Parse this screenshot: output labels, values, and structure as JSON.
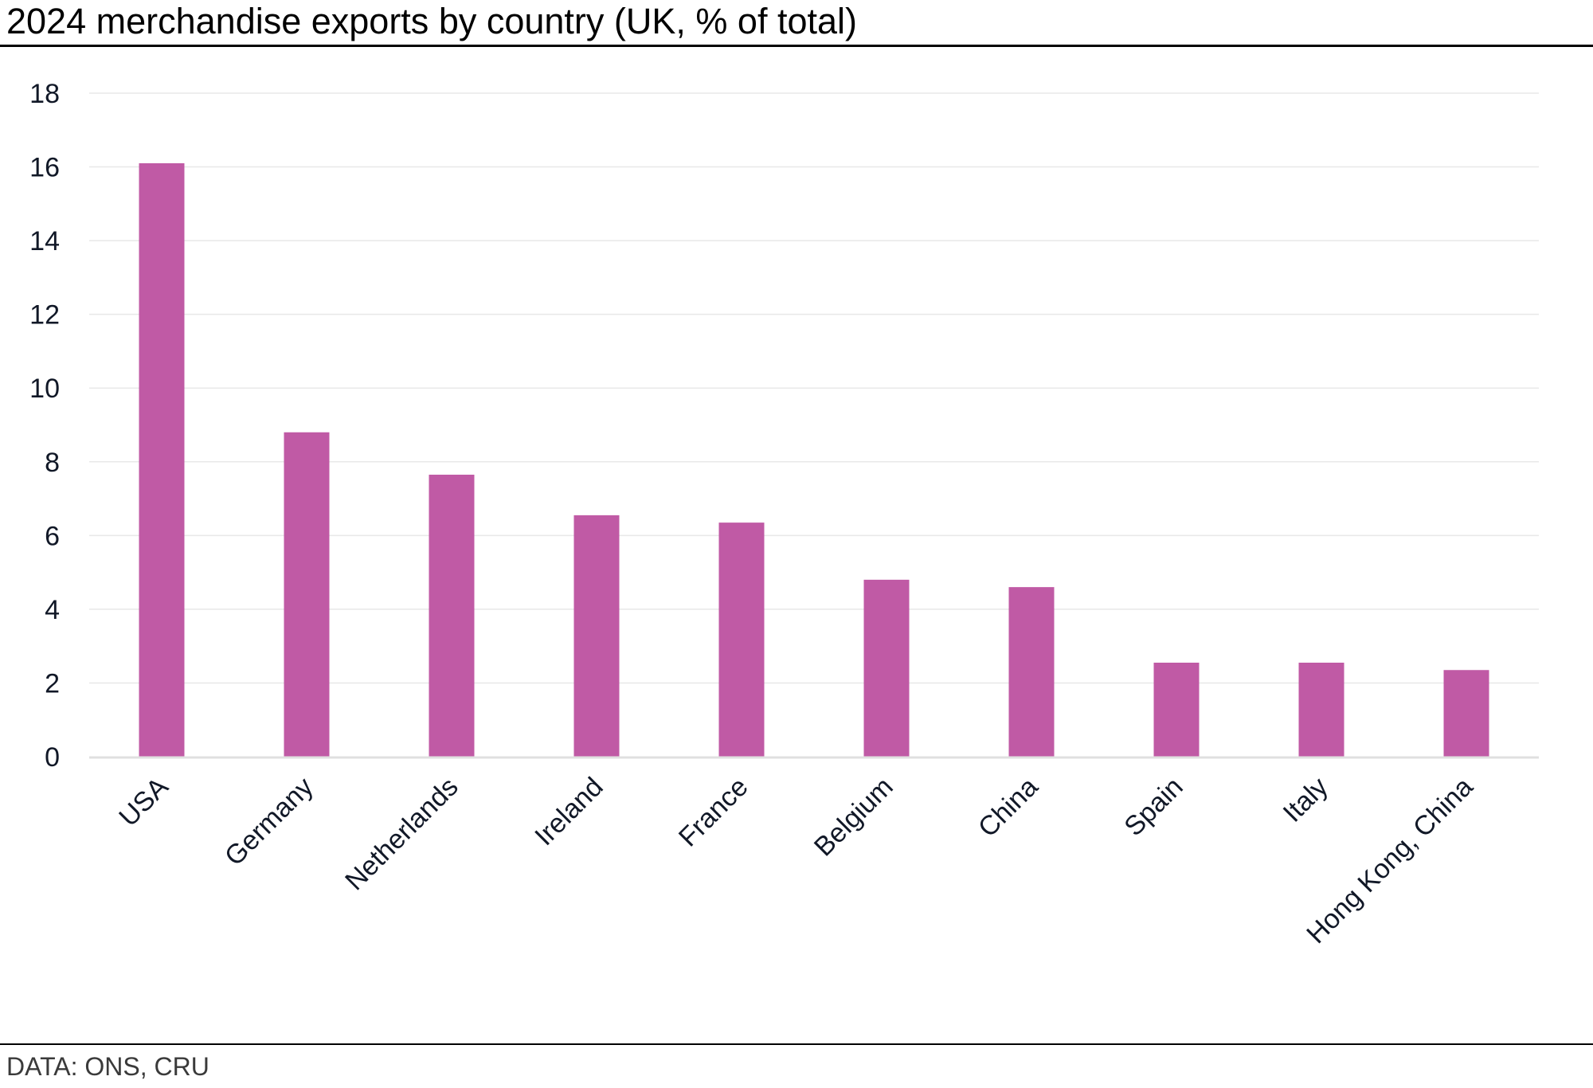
{
  "title": "2024 merchandise exports by country (UK, % of total)",
  "source": "DATA: ONS, CRU",
  "colors": {
    "bar": "#c05aa5",
    "grid": "#e8e8e8",
    "axis": "#e0e0e0",
    "rule": "#000000"
  },
  "chart_data": {
    "type": "bar",
    "title": "2024 merchandise exports by country (UK, % of total)",
    "xlabel": "",
    "ylabel": "",
    "categories": [
      "USA",
      "Germany",
      "Netherlands",
      "Ireland",
      "France",
      "Belgium",
      "China",
      "Spain",
      "Italy",
      "Hong Kong, China"
    ],
    "values": [
      16.1,
      8.8,
      7.65,
      6.55,
      6.35,
      4.8,
      4.6,
      2.55,
      2.55,
      2.35
    ],
    "ylim": [
      0,
      18
    ],
    "yticks": [
      0,
      2,
      4,
      6,
      8,
      10,
      12,
      14,
      16,
      18
    ],
    "grid": true,
    "legend": "none"
  }
}
